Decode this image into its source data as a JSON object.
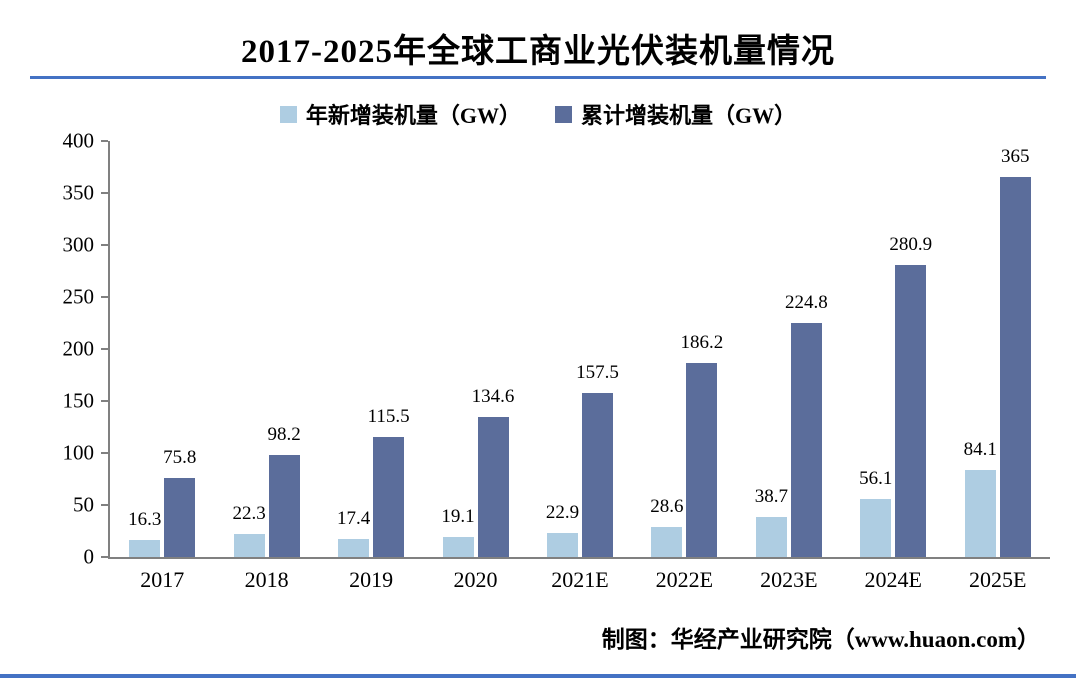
{
  "title": "2017-2025年全球工商业光伏装机量情况",
  "source_credit": "制图：华经产业研究院（www.huaon.com）",
  "colors": {
    "accent_rule": "#4472c4",
    "axis": "#808080",
    "annual_bar": "#aecde2",
    "cumulative_bar": "#5b6d9b"
  },
  "chart_data": {
    "type": "bar",
    "title": "2017-2025年全球工商业光伏装机量情况",
    "categories": [
      "2017",
      "2018",
      "2019",
      "2020",
      "2021E",
      "2022E",
      "2023E",
      "2024E",
      "2025E"
    ],
    "series": [
      {
        "name": "年新增装机量（GW）",
        "color": "#aecde2",
        "values": [
          16.3,
          22.3,
          17.4,
          19.1,
          22.9,
          28.6,
          38.7,
          56.1,
          84.1
        ]
      },
      {
        "name": "累计增装机量（GW）",
        "color": "#5b6d9b",
        "values": [
          75.8,
          98.2,
          115.5,
          134.6,
          157.5,
          186.2,
          224.8,
          280.9,
          365
        ]
      }
    ],
    "ylim": [
      0,
      400
    ],
    "yticks": [
      0,
      50,
      100,
      150,
      200,
      250,
      300,
      350,
      400
    ],
    "grid": false,
    "legend_position": "top",
    "value_labels": true,
    "source": "制图：华经产业研究院（www.huaon.com）"
  }
}
